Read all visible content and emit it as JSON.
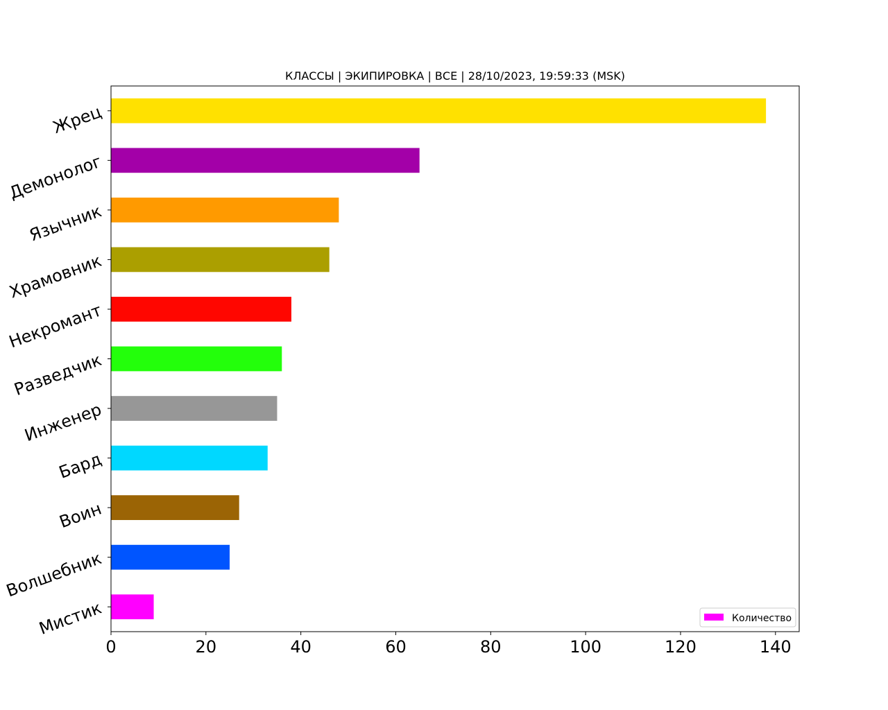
{
  "chart_data": {
    "type": "bar",
    "orientation": "horizontal",
    "title": "КЛАССЫ | ЭКИПИРОВКА | ВСЕ | 28/10/2023, 19:59:33 (MSK)",
    "categories": [
      "Жрец",
      "Демонолог",
      "Язычник",
      "Храмовник",
      "Некромант",
      "Разведчик",
      "Инженер",
      "Бард",
      "Воин",
      "Волшебник",
      "Мистик"
    ],
    "values": [
      138,
      65,
      48,
      46,
      38,
      36,
      35,
      33,
      27,
      25,
      9
    ],
    "colors": [
      "#ffe100",
      "#a300a8",
      "#ff9a00",
      "#ab9f00",
      "#ff0600",
      "#23ff0b",
      "#979797",
      "#00d8ff",
      "#9b6405",
      "#0055ff",
      "#ff00ff"
    ],
    "xticks": [
      0,
      20,
      40,
      60,
      80,
      100,
      120,
      140
    ],
    "xlim": [
      0,
      145
    ],
    "grid": false,
    "legend": {
      "label": "Количество",
      "color": "#ff00ff",
      "position": "bottom-right"
    },
    "xlabel": "",
    "ylabel": ""
  }
}
